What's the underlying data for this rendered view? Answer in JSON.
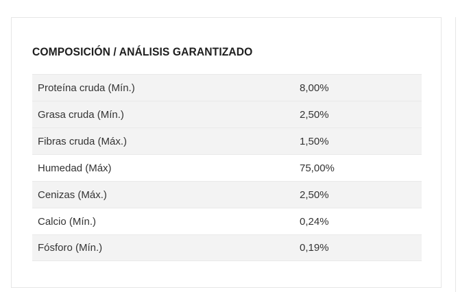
{
  "section": {
    "title": "COMPOSICIÓN / ANÁLISIS GARANTIZADO"
  },
  "table": {
    "rows": [
      {
        "name": "Proteína cruda (Mín.)",
        "value": "8,00%"
      },
      {
        "name": "Grasa cruda (Mín.)",
        "value": "2,50%"
      },
      {
        "name": "Fibras cruda (Máx.)",
        "value": "1,50%"
      },
      {
        "name": "Humedad (Máx)",
        "value": "75,00%"
      },
      {
        "name": "Cenizas (Máx.)",
        "value": "2,50%"
      },
      {
        "name": "Calcio (Mín.)",
        "value": "0,24%"
      },
      {
        "name": "Fósforo (Mín.)",
        "value": "0,19%"
      }
    ]
  }
}
